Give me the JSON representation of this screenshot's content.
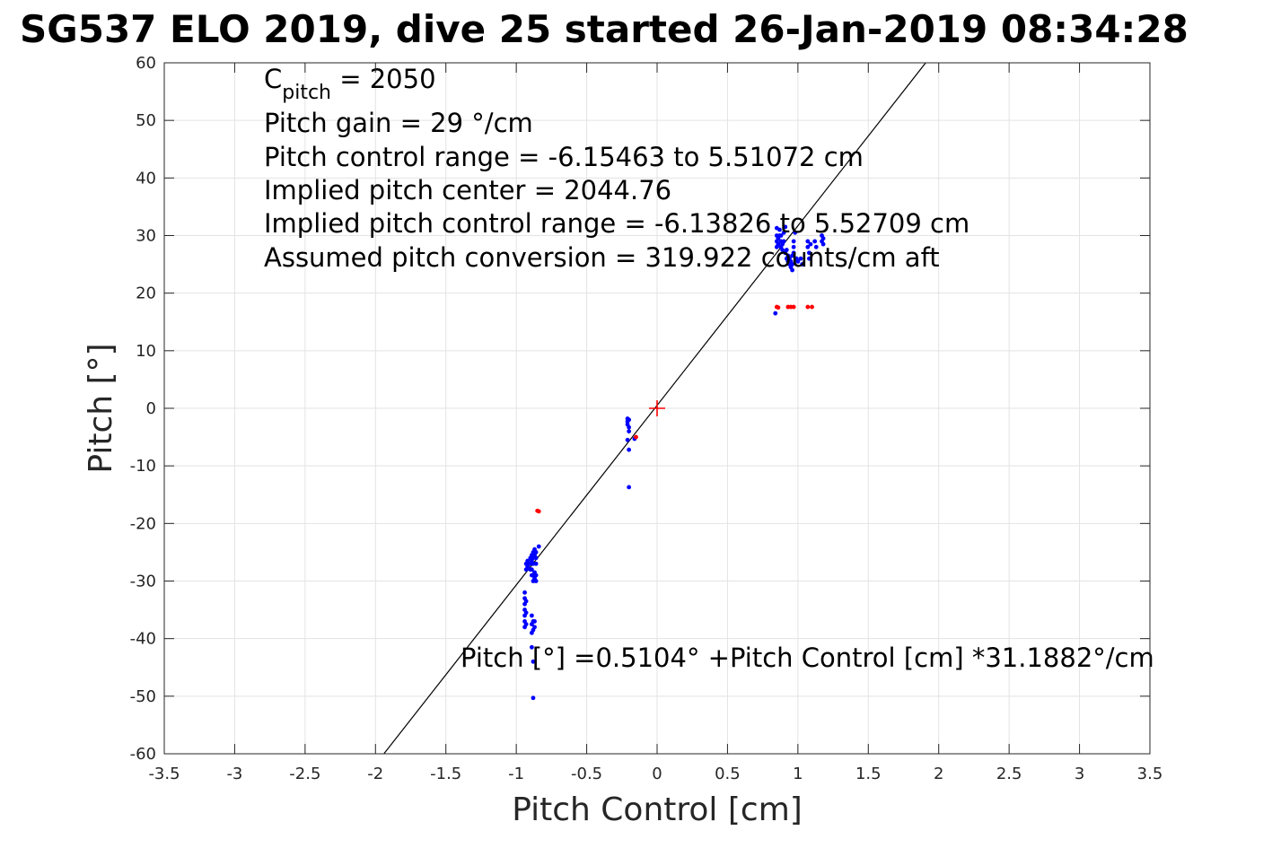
{
  "chart_data": {
    "type": "scatter",
    "title": "SG537 ELO 2019, dive 25 started 26-Jan-2019 08:34:28",
    "xlabel": "Pitch Control [cm]",
    "ylabel": "Pitch [°]",
    "xlim": [
      -3.5,
      3.5
    ],
    "ylim": [
      -60,
      60
    ],
    "grid": true,
    "x_ticks": [
      -3.5,
      -3,
      -2.5,
      -2,
      -1.5,
      -1,
      -0.5,
      0,
      0.5,
      1,
      1.5,
      2,
      2.5,
      3,
      3.5
    ],
    "x_tick_labels": [
      "-3.5",
      "-3",
      "-2.5",
      "-2",
      "-1.5",
      "-1",
      "-0.5",
      "0",
      "0.5",
      "1",
      "1.5",
      "2",
      "2.5",
      "3",
      "3.5"
    ],
    "y_ticks": [
      -60,
      -50,
      -40,
      -30,
      -20,
      -10,
      0,
      10,
      20,
      30,
      40,
      50,
      60
    ],
    "y_tick_labels": [
      "-60",
      "-50",
      "-40",
      "-30",
      "-20",
      "-10",
      "0",
      "10",
      "20",
      "30",
      "40",
      "50",
      "60"
    ],
    "annotations": {
      "c_pitch_symbol": "C",
      "c_pitch_subscript": "pitch",
      "c_pitch_value": " = 2050",
      "pitch_gain": "Pitch gain = 29 °/cm",
      "control_range": "Pitch control range = -6.15463 to 5.51072 cm",
      "implied_center": "Implied pitch center = 2044.76",
      "implied_range": "Implied pitch control range = -6.13826 to 5.52709 cm",
      "assumed_conversion": "Assumed pitch conversion = 319.922 counts/cm aft",
      "fit_equation": "Pitch [°] =0.5104° +Pitch Control [cm] *31.1882°/cm"
    },
    "fit_line": {
      "color": "#000000",
      "intercept": 0.5104,
      "slope": 31.1882
    },
    "origin_marker": {
      "x": 0,
      "y": 0,
      "color": "#ff0000",
      "shape": "plus"
    },
    "series": [
      {
        "color": "#0000ff",
        "points": [
          [
            -0.93,
            -27
          ],
          [
            -0.93,
            -28
          ],
          [
            -0.92,
            -26.5
          ],
          [
            -0.92,
            -27.5
          ],
          [
            -0.91,
            -27
          ],
          [
            -0.9,
            -26
          ],
          [
            -0.9,
            -27
          ],
          [
            -0.9,
            -28
          ],
          [
            -0.89,
            -25.5
          ],
          [
            -0.89,
            -26.5
          ],
          [
            -0.88,
            -25
          ],
          [
            -0.88,
            -26
          ],
          [
            -0.88,
            -27
          ],
          [
            -0.87,
            -24.5
          ],
          [
            -0.87,
            -25.5
          ],
          [
            -0.86,
            -25
          ],
          [
            -0.86,
            -26
          ],
          [
            -0.86,
            -27
          ],
          [
            -0.89,
            -28
          ],
          [
            -0.89,
            -29
          ],
          [
            -0.88,
            -29
          ],
          [
            -0.88,
            -30
          ],
          [
            -0.87,
            -28.5
          ],
          [
            -0.87,
            -29.5
          ],
          [
            -0.86,
            -30
          ],
          [
            -0.86,
            -29
          ],
          [
            -0.94,
            -32
          ],
          [
            -0.94,
            -33
          ],
          [
            -0.94,
            -34
          ],
          [
            -0.94,
            -35
          ],
          [
            -0.94,
            -36
          ],
          [
            -0.94,
            -37
          ],
          [
            -0.94,
            -38
          ],
          [
            -0.93,
            -33.5
          ],
          [
            -0.93,
            -35.5
          ],
          [
            -0.93,
            -37.5
          ],
          [
            -0.89,
            -36
          ],
          [
            -0.89,
            -37.5
          ],
          [
            -0.88,
            -38.5
          ],
          [
            -0.88,
            -37
          ],
          [
            -0.87,
            -37
          ],
          [
            -0.87,
            -38
          ],
          [
            -0.89,
            -39
          ],
          [
            -0.89,
            -41.5
          ],
          [
            -0.88,
            -44
          ],
          [
            -0.88,
            -50.3
          ],
          [
            -0.84,
            -24
          ],
          [
            -0.21,
            -1.8
          ],
          [
            -0.21,
            -2.3
          ],
          [
            -0.21,
            -2.8
          ],
          [
            -0.2,
            -3.3
          ],
          [
            -0.2,
            -2
          ],
          [
            -0.2,
            -4
          ],
          [
            -0.21,
            -5.5
          ],
          [
            -0.2,
            -7.2
          ],
          [
            -0.2,
            -13.7
          ],
          [
            -0.16,
            -5.3
          ],
          [
            0.84,
            16.5
          ],
          [
            0.85,
            28
          ],
          [
            0.85,
            29
          ],
          [
            0.85,
            30
          ],
          [
            0.85,
            31.3
          ],
          [
            0.86,
            28.5
          ],
          [
            0.86,
            29.5
          ],
          [
            0.87,
            30
          ],
          [
            0.87,
            31
          ],
          [
            0.88,
            28
          ],
          [
            0.88,
            29
          ],
          [
            0.88,
            30
          ],
          [
            0.89,
            27.5
          ],
          [
            0.89,
            28.5
          ],
          [
            0.9,
            29
          ],
          [
            0.9,
            30.5
          ],
          [
            0.91,
            31.5
          ],
          [
            0.91,
            27
          ],
          [
            0.92,
            26
          ],
          [
            0.92,
            27.5
          ],
          [
            0.93,
            25.5
          ],
          [
            0.93,
            26.5
          ],
          [
            0.94,
            25
          ],
          [
            0.94,
            26
          ],
          [
            0.95,
            24.5
          ],
          [
            0.95,
            25.5
          ],
          [
            0.96,
            24
          ],
          [
            0.96,
            25
          ],
          [
            0.96,
            26.5
          ],
          [
            0.97,
            27
          ],
          [
            0.97,
            28
          ],
          [
            0.97,
            29
          ],
          [
            0.98,
            30.5
          ],
          [
            0.99,
            26
          ],
          [
            1.0,
            25.5
          ],
          [
            1.02,
            26
          ],
          [
            1.03,
            25
          ],
          [
            1.07,
            28
          ],
          [
            1.07,
            29
          ],
          [
            1.08,
            27
          ],
          [
            1.08,
            26
          ],
          [
            1.09,
            28.5
          ],
          [
            1.12,
            29
          ],
          [
            1.13,
            28
          ],
          [
            1.17,
            29
          ],
          [
            1.17,
            30
          ],
          [
            1.18,
            28.5
          ],
          [
            1.18,
            29.5
          ]
        ]
      },
      {
        "color": "#ff0000",
        "points": [
          [
            -0.85,
            -17.8
          ],
          [
            -0.84,
            -17.9
          ],
          [
            -0.15,
            -5
          ],
          [
            0.85,
            17.6
          ],
          [
            0.86,
            17.5
          ],
          [
            0.93,
            17.6
          ],
          [
            0.95,
            17.6
          ],
          [
            0.97,
            17.6
          ],
          [
            1.07,
            17.6
          ],
          [
            1.1,
            17.6
          ]
        ]
      }
    ]
  }
}
